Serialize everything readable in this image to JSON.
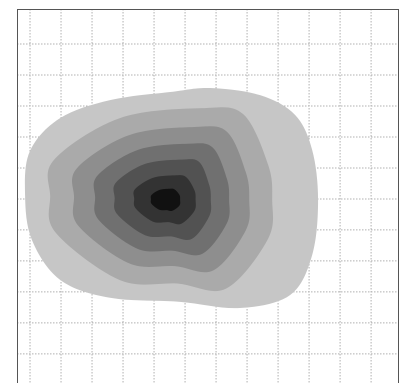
{
  "chart_data": {
    "type": "contour",
    "grid": true,
    "xlim": [
      -0.42,
      11.9
    ],
    "ylim": [
      -0.94,
      11.13
    ],
    "xticks": [
      0,
      1,
      2,
      3,
      4,
      5,
      6,
      7,
      8,
      9,
      10,
      11
    ],
    "yticks": [
      0,
      1,
      2,
      3,
      4,
      5,
      6,
      7,
      8,
      9,
      10
    ],
    "contours": [
      {
        "level": 1,
        "color": "#c6c6c6",
        "points": [
          [
            0,
            6.55
          ],
          [
            0.97,
            7.61
          ],
          [
            2.58,
            8.19
          ],
          [
            4.52,
            8.45
          ],
          [
            5.81,
            8.58
          ],
          [
            7.42,
            8.35
          ],
          [
            8.55,
            7.71
          ],
          [
            9.1,
            6.58
          ],
          [
            9.29,
            4.97
          ],
          [
            9.1,
            3.19
          ],
          [
            8.39,
            1.9
          ],
          [
            6.77,
            1.48
          ],
          [
            4.84,
            1.68
          ],
          [
            2.58,
            1.81
          ],
          [
            0.97,
            2.39
          ],
          [
            0.06,
            3.68
          ],
          [
            -0.16,
            5.13
          ]
        ]
      },
      {
        "level": 2,
        "color": "#aaaaaa",
        "points": [
          [
            0.78,
            6.27
          ],
          [
            2.9,
            7.61
          ],
          [
            5.55,
            7.93
          ],
          [
            6.87,
            7.74
          ],
          [
            7.68,
            6.1
          ],
          [
            7.81,
            4.97
          ],
          [
            7.68,
            3.72
          ],
          [
            6.33,
            2.11
          ],
          [
            4.75,
            2.27
          ],
          [
            2.9,
            2.38
          ],
          [
            0.83,
            3.91
          ],
          [
            0.65,
            5.1
          ]
        ]
      },
      {
        "level": 3,
        "color": "#8e8e8e",
        "points": [
          [
            1.52,
            6.0
          ],
          [
            3.2,
            7.06
          ],
          [
            5.3,
            7.32
          ],
          [
            6.35,
            7.17
          ],
          [
            6.96,
            5.86
          ],
          [
            7.07,
            4.97
          ],
          [
            6.96,
            3.99
          ],
          [
            5.92,
            2.7
          ],
          [
            4.67,
            2.83
          ],
          [
            3.2,
            2.92
          ],
          [
            1.56,
            4.13
          ],
          [
            1.42,
            5.07
          ]
        ]
      },
      {
        "level": 4,
        "color": "#707070",
        "points": [
          [
            2.18,
            5.76
          ],
          [
            3.47,
            6.58
          ],
          [
            5.08,
            6.78
          ],
          [
            5.89,
            6.66
          ],
          [
            6.35,
            5.65
          ],
          [
            6.42,
            4.97
          ],
          [
            6.35,
            4.22
          ],
          [
            5.56,
            3.23
          ],
          [
            4.6,
            3.33
          ],
          [
            3.47,
            3.39
          ],
          [
            2.21,
            4.33
          ],
          [
            2.1,
            5.05
          ]
        ]
      },
      {
        "level": 5,
        "color": "#525252",
        "points": [
          [
            2.78,
            5.54
          ],
          [
            3.71,
            6.13
          ],
          [
            4.88,
            6.27
          ],
          [
            5.46,
            6.19
          ],
          [
            5.78,
            5.45
          ],
          [
            5.83,
            4.97
          ],
          [
            5.78,
            4.44
          ],
          [
            5.22,
            3.71
          ],
          [
            4.53,
            3.79
          ],
          [
            3.71,
            3.83
          ],
          [
            2.81,
            4.51
          ],
          [
            2.73,
            5.03
          ]
        ]
      },
      {
        "level": 6,
        "color": "#333333",
        "points": [
          [
            3.39,
            5.32
          ],
          [
            3.96,
            5.68
          ],
          [
            4.67,
            5.76
          ],
          [
            5.03,
            5.71
          ],
          [
            5.3,
            5.29
          ],
          [
            5.34,
            4.97
          ],
          [
            5.3,
            4.61
          ],
          [
            4.88,
            4.2
          ],
          [
            4.46,
            4.25
          ],
          [
            3.96,
            4.27
          ],
          [
            3.41,
            4.69
          ],
          [
            3.36,
            5.01
          ]
        ]
      },
      {
        "level": 7,
        "color": "#111111",
        "points": [
          [
            3.92,
            5.13
          ],
          [
            4.17,
            5.29
          ],
          [
            4.5,
            5.33
          ],
          [
            4.66,
            5.31
          ],
          [
            4.82,
            5.13
          ],
          [
            4.84,
            4.97
          ],
          [
            4.82,
            4.79
          ],
          [
            4.59,
            4.62
          ],
          [
            4.4,
            4.64
          ],
          [
            4.17,
            4.65
          ],
          [
            3.92,
            4.84
          ],
          [
            3.9,
            4.99
          ]
        ]
      }
    ]
  }
}
